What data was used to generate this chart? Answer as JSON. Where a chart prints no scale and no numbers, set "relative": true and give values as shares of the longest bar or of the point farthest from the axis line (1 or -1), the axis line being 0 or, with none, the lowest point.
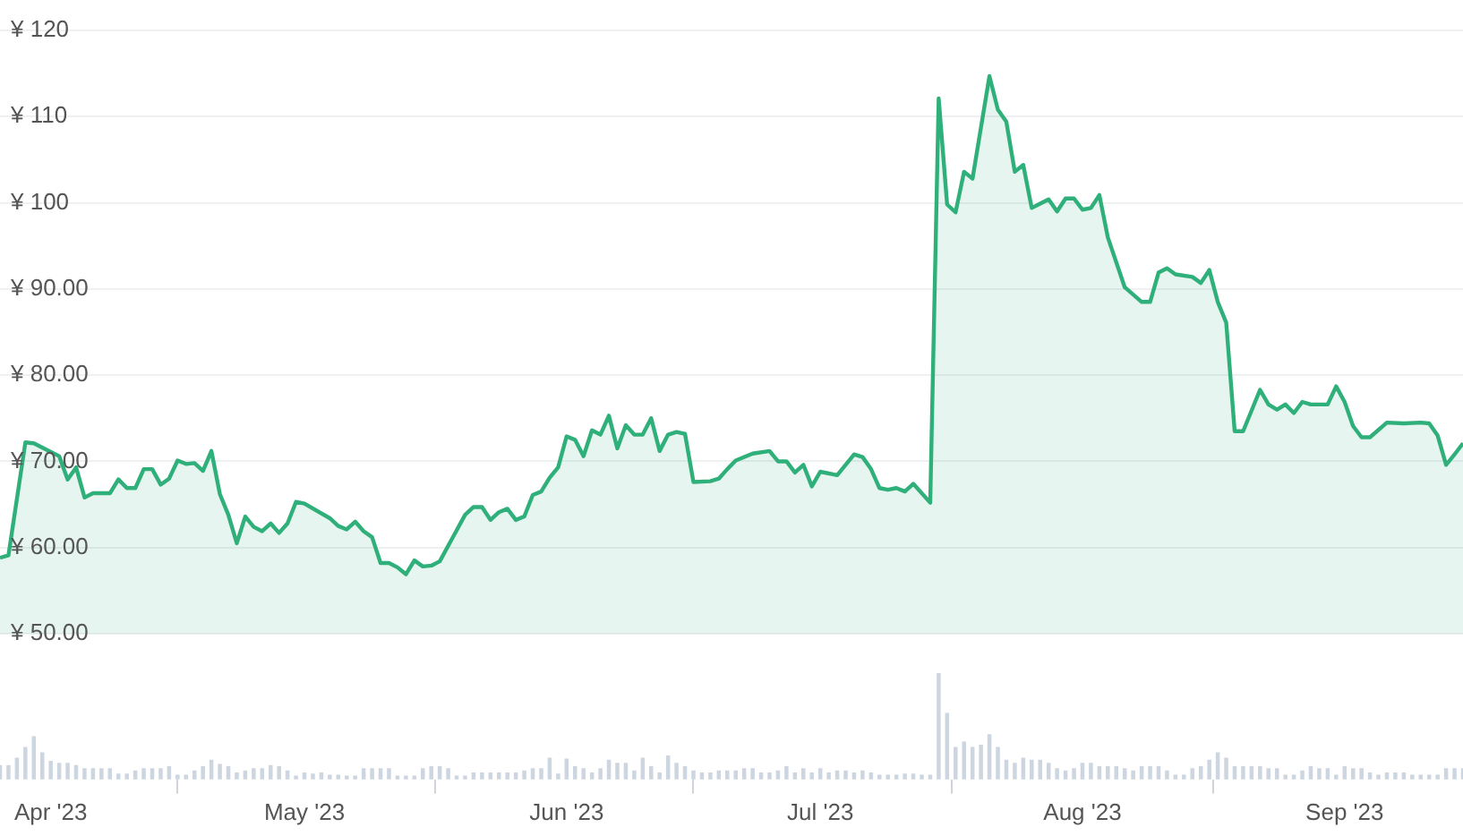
{
  "chart_data": [
    {
      "type": "area",
      "color": "#2fb07a",
      "ylim": [
        50,
        120
      ],
      "yticks": [
        {
          "value": 50,
          "label": "¥ 50.00"
        },
        {
          "value": 60,
          "label": "¥ 60.00"
        },
        {
          "value": 70,
          "label": "¥ 70.00"
        },
        {
          "value": 80,
          "label": "¥ 80.00"
        },
        {
          "value": 90,
          "label": "¥ 90.00"
        },
        {
          "value": 100,
          "label": "¥ 100"
        },
        {
          "value": 110,
          "label": "¥ 110"
        },
        {
          "value": 120,
          "label": "¥ 120"
        }
      ],
      "xlim": [
        "2023-03-26",
        "2023-09-15"
      ],
      "tick_labels": "y",
      "grid": "y",
      "marker": "none",
      "line_style": "solid",
      "x": [
        "2023-03-26",
        "2023-03-27",
        "2023-03-29",
        "2023-03-30",
        "2023-04-02",
        "2023-04-03",
        "2023-04-04",
        "2023-04-05",
        "2023-04-06",
        "2023-04-08",
        "2023-04-09",
        "2023-04-10",
        "2023-04-11",
        "2023-04-12",
        "2023-04-13",
        "2023-04-14",
        "2023-04-15",
        "2023-04-16",
        "2023-04-17",
        "2023-04-18",
        "2023-04-19",
        "2023-04-20",
        "2023-04-21",
        "2023-04-22",
        "2023-04-23",
        "2023-04-24",
        "2023-04-25",
        "2023-04-26",
        "2023-04-27",
        "2023-04-28",
        "2023-04-29",
        "2023-04-30",
        "2023-05-01",
        "2023-05-04",
        "2023-05-05",
        "2023-05-06",
        "2023-05-07",
        "2023-05-08",
        "2023-05-09",
        "2023-05-10",
        "2023-05-11",
        "2023-05-12",
        "2023-05-13",
        "2023-05-14",
        "2023-05-15",
        "2023-05-16",
        "2023-05-17",
        "2023-05-20",
        "2023-05-21",
        "2023-05-22",
        "2023-05-23",
        "2023-05-24",
        "2023-05-25",
        "2023-05-26",
        "2023-05-27",
        "2023-05-28",
        "2023-05-29",
        "2023-05-30",
        "2023-05-31",
        "2023-06-01",
        "2023-06-02",
        "2023-06-03",
        "2023-06-04",
        "2023-06-05",
        "2023-06-06",
        "2023-06-07",
        "2023-06-08",
        "2023-06-09",
        "2023-06-10",
        "2023-06-11",
        "2023-06-12",
        "2023-06-13",
        "2023-06-14",
        "2023-06-15",
        "2023-06-16",
        "2023-06-18",
        "2023-06-19",
        "2023-06-20",
        "2023-06-21",
        "2023-06-23",
        "2023-06-25",
        "2023-06-26",
        "2023-06-27",
        "2023-06-28",
        "2023-06-29",
        "2023-06-30",
        "2023-07-01",
        "2023-07-03",
        "2023-07-05",
        "2023-07-06",
        "2023-07-07",
        "2023-07-08",
        "2023-07-09",
        "2023-07-10",
        "2023-07-11",
        "2023-07-12",
        "2023-07-14",
        "2023-07-15",
        "2023-07-16",
        "2023-07-17",
        "2023-07-18",
        "2023-07-19",
        "2023-07-21",
        "2023-07-22",
        "2023-07-23",
        "2023-07-24",
        "2023-07-25",
        "2023-07-26",
        "2023-07-27",
        "2023-07-28",
        "2023-07-29",
        "2023-07-30",
        "2023-07-31",
        "2023-08-01",
        "2023-08-02",
        "2023-08-03",
        "2023-08-04",
        "2023-08-06",
        "2023-08-08",
        "2023-08-09",
        "2023-08-10",
        "2023-08-11",
        "2023-08-12",
        "2023-08-14",
        "2023-08-15",
        "2023-08-16",
        "2023-08-17",
        "2023-08-18",
        "2023-08-19",
        "2023-08-20",
        "2023-08-22",
        "2023-08-23",
        "2023-08-24",
        "2023-08-25",
        "2023-08-26",
        "2023-08-27",
        "2023-08-28",
        "2023-08-30",
        "2023-08-31",
        "2023-09-01",
        "2023-09-02",
        "2023-09-03",
        "2023-09-04",
        "2023-09-06",
        "2023-09-08",
        "2023-09-10",
        "2023-09-11",
        "2023-09-12",
        "2023-09-13",
        "2023-09-14",
        "2023-09-15"
      ],
      "values": [
        58.8,
        59.1,
        72.2,
        72.1,
        70.6,
        67.9,
        69.3,
        65.8,
        66.3,
        66.3,
        67.9,
        66.9,
        66.9,
        69.1,
        69.1,
        67.3,
        68.0,
        70.1,
        69.7,
        69.8,
        68.9,
        71.2,
        66.2,
        63.8,
        60.5,
        63.6,
        62.4,
        61.9,
        62.8,
        61.7,
        62.8,
        65.3,
        65.1,
        63.4,
        62.5,
        62.1,
        63.0,
        61.9,
        61.2,
        58.2,
        58.2,
        57.7,
        56.9,
        58.5,
        57.8,
        57.9,
        58.4,
        63.8,
        64.7,
        64.7,
        63.2,
        64.1,
        64.5,
        63.2,
        63.6,
        66.1,
        66.5,
        68.1,
        69.3,
        72.9,
        72.5,
        70.6,
        73.6,
        73.1,
        75.3,
        71.5,
        74.2,
        73.1,
        73.1,
        75.0,
        71.2,
        73.1,
        73.4,
        73.2,
        67.6,
        67.7,
        68.0,
        69.1,
        70.1,
        70.9,
        71.2,
        70.0,
        70.0,
        68.7,
        69.6,
        67.1,
        68.8,
        68.4,
        70.8,
        70.5,
        69.1,
        66.9,
        66.7,
        66.9,
        66.5,
        67.4,
        65.2,
        112.1,
        99.8,
        98.9,
        103.6,
        102.8,
        114.7,
        110.8,
        109.4,
        103.6,
        104.4,
        99.4,
        99.9,
        100.4,
        99.0,
        100.5,
        100.5,
        99.2,
        99.4,
        100.9,
        96.0,
        90.2,
        88.5,
        88.5,
        91.9,
        92.4,
        91.7,
        91.4,
        90.7,
        92.2,
        88.5,
        86.1,
        73.5,
        73.5,
        78.3,
        76.6,
        76.0,
        76.6,
        75.6,
        76.9,
        76.6,
        76.6,
        78.7,
        76.9,
        74.1,
        72.8,
        72.8,
        74.5,
        74.4,
        74.5,
        74.4,
        73.0,
        69.6,
        70.8,
        72.1
      ]
    },
    {
      "type": "bar",
      "relative": true,
      "color": "#cdd6e0",
      "tick_labels": "x",
      "grid": false,
      "xlim": [
        "2023-03-26",
        "2023-09-15"
      ],
      "xticks": [
        {
          "value": "2023-04-01",
          "label": "Apr '23"
        },
        {
          "value": "2023-05-01",
          "label": "May '23"
        },
        {
          "value": "2023-06-01",
          "label": "Jun '23"
        },
        {
          "value": "2023-07-01",
          "label": "Jul '23"
        },
        {
          "value": "2023-08-01",
          "label": "Aug '23"
        },
        {
          "value": "2023-09-01",
          "label": "Sep '23"
        }
      ],
      "x": [
        "2023-03-26",
        "2023-03-27",
        "2023-03-28",
        "2023-03-29",
        "2023-03-30",
        "2023-03-31",
        "2023-04-01",
        "2023-04-02",
        "2023-04-03",
        "2023-04-04",
        "2023-04-05",
        "2023-04-06",
        "2023-04-07",
        "2023-04-08",
        "2023-04-09",
        "2023-04-10",
        "2023-04-11",
        "2023-04-12",
        "2023-04-13",
        "2023-04-14",
        "2023-04-15",
        "2023-04-16",
        "2023-04-17",
        "2023-04-18",
        "2023-04-19",
        "2023-04-20",
        "2023-04-21",
        "2023-04-22",
        "2023-04-23",
        "2023-04-24",
        "2023-04-25",
        "2023-04-26",
        "2023-04-27",
        "2023-04-28",
        "2023-04-29",
        "2023-04-30",
        "2023-05-01",
        "2023-05-02",
        "2023-05-03",
        "2023-05-04",
        "2023-05-05",
        "2023-05-06",
        "2023-05-07",
        "2023-05-08",
        "2023-05-09",
        "2023-05-10",
        "2023-05-11",
        "2023-05-12",
        "2023-05-13",
        "2023-05-14",
        "2023-05-15",
        "2023-05-16",
        "2023-05-17",
        "2023-05-18",
        "2023-05-19",
        "2023-05-20",
        "2023-05-21",
        "2023-05-22",
        "2023-05-23",
        "2023-05-24",
        "2023-05-25",
        "2023-05-26",
        "2023-05-27",
        "2023-05-28",
        "2023-05-29",
        "2023-05-30",
        "2023-05-31",
        "2023-06-01",
        "2023-06-02",
        "2023-06-03",
        "2023-06-04",
        "2023-06-05",
        "2023-06-06",
        "2023-06-07",
        "2023-06-08",
        "2023-06-09",
        "2023-06-10",
        "2023-06-11",
        "2023-06-12",
        "2023-06-13",
        "2023-06-14",
        "2023-06-15",
        "2023-06-16",
        "2023-06-17",
        "2023-06-18",
        "2023-06-19",
        "2023-06-20",
        "2023-06-21",
        "2023-06-22",
        "2023-06-23",
        "2023-06-24",
        "2023-06-25",
        "2023-06-26",
        "2023-06-27",
        "2023-06-28",
        "2023-06-29",
        "2023-06-30",
        "2023-07-01",
        "2023-07-02",
        "2023-07-03",
        "2023-07-04",
        "2023-07-05",
        "2023-07-06",
        "2023-07-07",
        "2023-07-08",
        "2023-07-09",
        "2023-07-10",
        "2023-07-11",
        "2023-07-12",
        "2023-07-13",
        "2023-07-14",
        "2023-07-15",
        "2023-07-16",
        "2023-07-17",
        "2023-07-18",
        "2023-07-19",
        "2023-07-20",
        "2023-07-21",
        "2023-07-22",
        "2023-07-23",
        "2023-07-24",
        "2023-07-25",
        "2023-07-26",
        "2023-07-27",
        "2023-07-28",
        "2023-07-29",
        "2023-07-30",
        "2023-07-31",
        "2023-08-01",
        "2023-08-02",
        "2023-08-03",
        "2023-08-04",
        "2023-08-05",
        "2023-08-06",
        "2023-08-07",
        "2023-08-08",
        "2023-08-09",
        "2023-08-10",
        "2023-08-11",
        "2023-08-12",
        "2023-08-13",
        "2023-08-14",
        "2023-08-15",
        "2023-08-16",
        "2023-08-17",
        "2023-08-18",
        "2023-08-19",
        "2023-08-20",
        "2023-08-21",
        "2023-08-22",
        "2023-08-23",
        "2023-08-24",
        "2023-08-25",
        "2023-08-26",
        "2023-08-27",
        "2023-08-28",
        "2023-08-29",
        "2023-08-30",
        "2023-08-31",
        "2023-09-01",
        "2023-09-02",
        "2023-09-03",
        "2023-09-04",
        "2023-09-05",
        "2023-09-06",
        "2023-09-07",
        "2023-09-08",
        "2023-09-09",
        "2023-09-10",
        "2023-09-11",
        "2023-09-12",
        "2023-09-13",
        "2023-09-14",
        "2023-09-15"
      ],
      "values": [
        0.13,
        0.13,
        0.2,
        0.3,
        0.4,
        0.25,
        0.17,
        0.15,
        0.15,
        0.13,
        0.1,
        0.1,
        0.1,
        0.1,
        0.05,
        0.05,
        0.08,
        0.1,
        0.1,
        0.1,
        0.12,
        0.04,
        0.04,
        0.08,
        0.12,
        0.18,
        0.14,
        0.12,
        0.06,
        0.08,
        0.1,
        0.1,
        0.13,
        0.12,
        0.08,
        0.03,
        0.06,
        0.05,
        0.06,
        0.04,
        0.04,
        0.03,
        0.03,
        0.1,
        0.1,
        0.1,
        0.1,
        0.03,
        0.03,
        0.03,
        0.1,
        0.12,
        0.12,
        0.1,
        0.03,
        0.03,
        0.06,
        0.06,
        0.06,
        0.06,
        0.06,
        0.06,
        0.08,
        0.1,
        0.1,
        0.2,
        0.05,
        0.19,
        0.12,
        0.1,
        0.06,
        0.1,
        0.18,
        0.15,
        0.15,
        0.08,
        0.2,
        0.12,
        0.06,
        0.22,
        0.15,
        0.12,
        0.08,
        0.06,
        0.06,
        0.08,
        0.08,
        0.08,
        0.1,
        0.1,
        0.06,
        0.06,
        0.08,
        0.12,
        0.06,
        0.1,
        0.06,
        0.1,
        0.06,
        0.08,
        0.08,
        0.06,
        0.08,
        0.06,
        0.04,
        0.04,
        0.04,
        0.05,
        0.05,
        0.04,
        0.04,
        1,
        0.62,
        0.3,
        0.35,
        0.3,
        0.32,
        0.42,
        0.3,
        0.18,
        0.15,
        0.2,
        0.18,
        0.18,
        0.15,
        0.1,
        0.08,
        0.1,
        0.15,
        0.15,
        0.12,
        0.12,
        0.12,
        0.1,
        0.08,
        0.12,
        0.12,
        0.12,
        0.08,
        0.04,
        0.04,
        0.1,
        0.12,
        0.18,
        0.25,
        0.2,
        0.12,
        0.12,
        0.12,
        0.12,
        0.1,
        0.1,
        0.04,
        0.04,
        0.08,
        0.12,
        0.1,
        0.1,
        0.04,
        0.12,
        0.1,
        0.1,
        0.06,
        0.04,
        0.06,
        0.06,
        0.06,
        0.04,
        0.04,
        0.04,
        0.04,
        0.1,
        0.1,
        0.1
      ]
    }
  ]
}
